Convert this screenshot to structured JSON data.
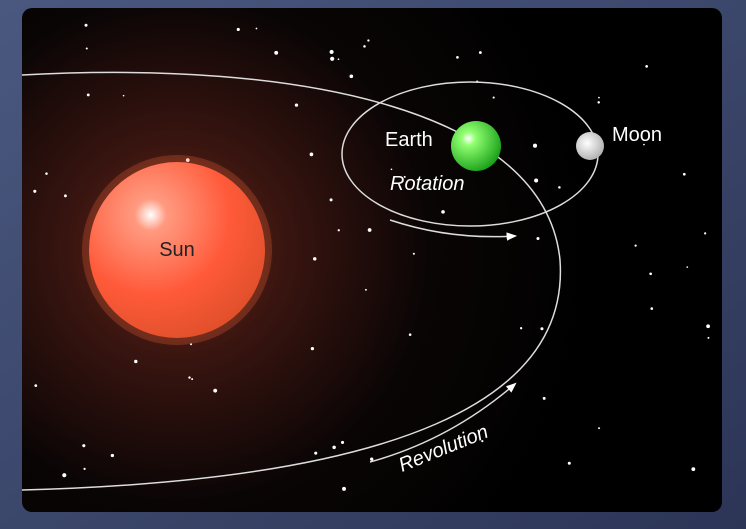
{
  "labels": {
    "sun": "Sun",
    "earth": "Earth",
    "rotation": "Rotation",
    "moon": "Moon",
    "revolution": "Revolution"
  }
}
